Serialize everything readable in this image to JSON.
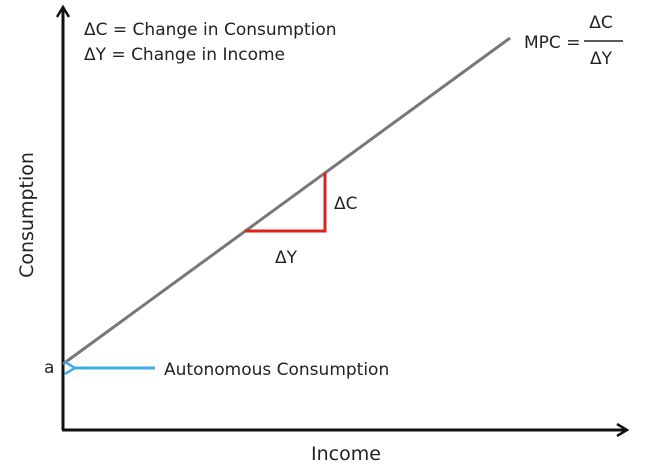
{
  "legend": {
    "delta_c_definition": "ΔC = Change in Consumption",
    "delta_y_definition": "ΔY = Change in Income"
  },
  "formula": {
    "lhs": "MPC =",
    "numerator": "ΔC",
    "denominator": "ΔY"
  },
  "axes": {
    "x_label": "Income",
    "y_label": "Consumption"
  },
  "triangle": {
    "rise_label": "ΔC",
    "run_label": "ΔY"
  },
  "intercept": {
    "label": "a",
    "annotation": "Autonomous Consumption"
  },
  "colors": {
    "axis": "#111111",
    "consumption_line": "#777777",
    "triangle": "#dd2222",
    "pointer_arrow": "#3aaee8",
    "text": "#222222"
  }
}
